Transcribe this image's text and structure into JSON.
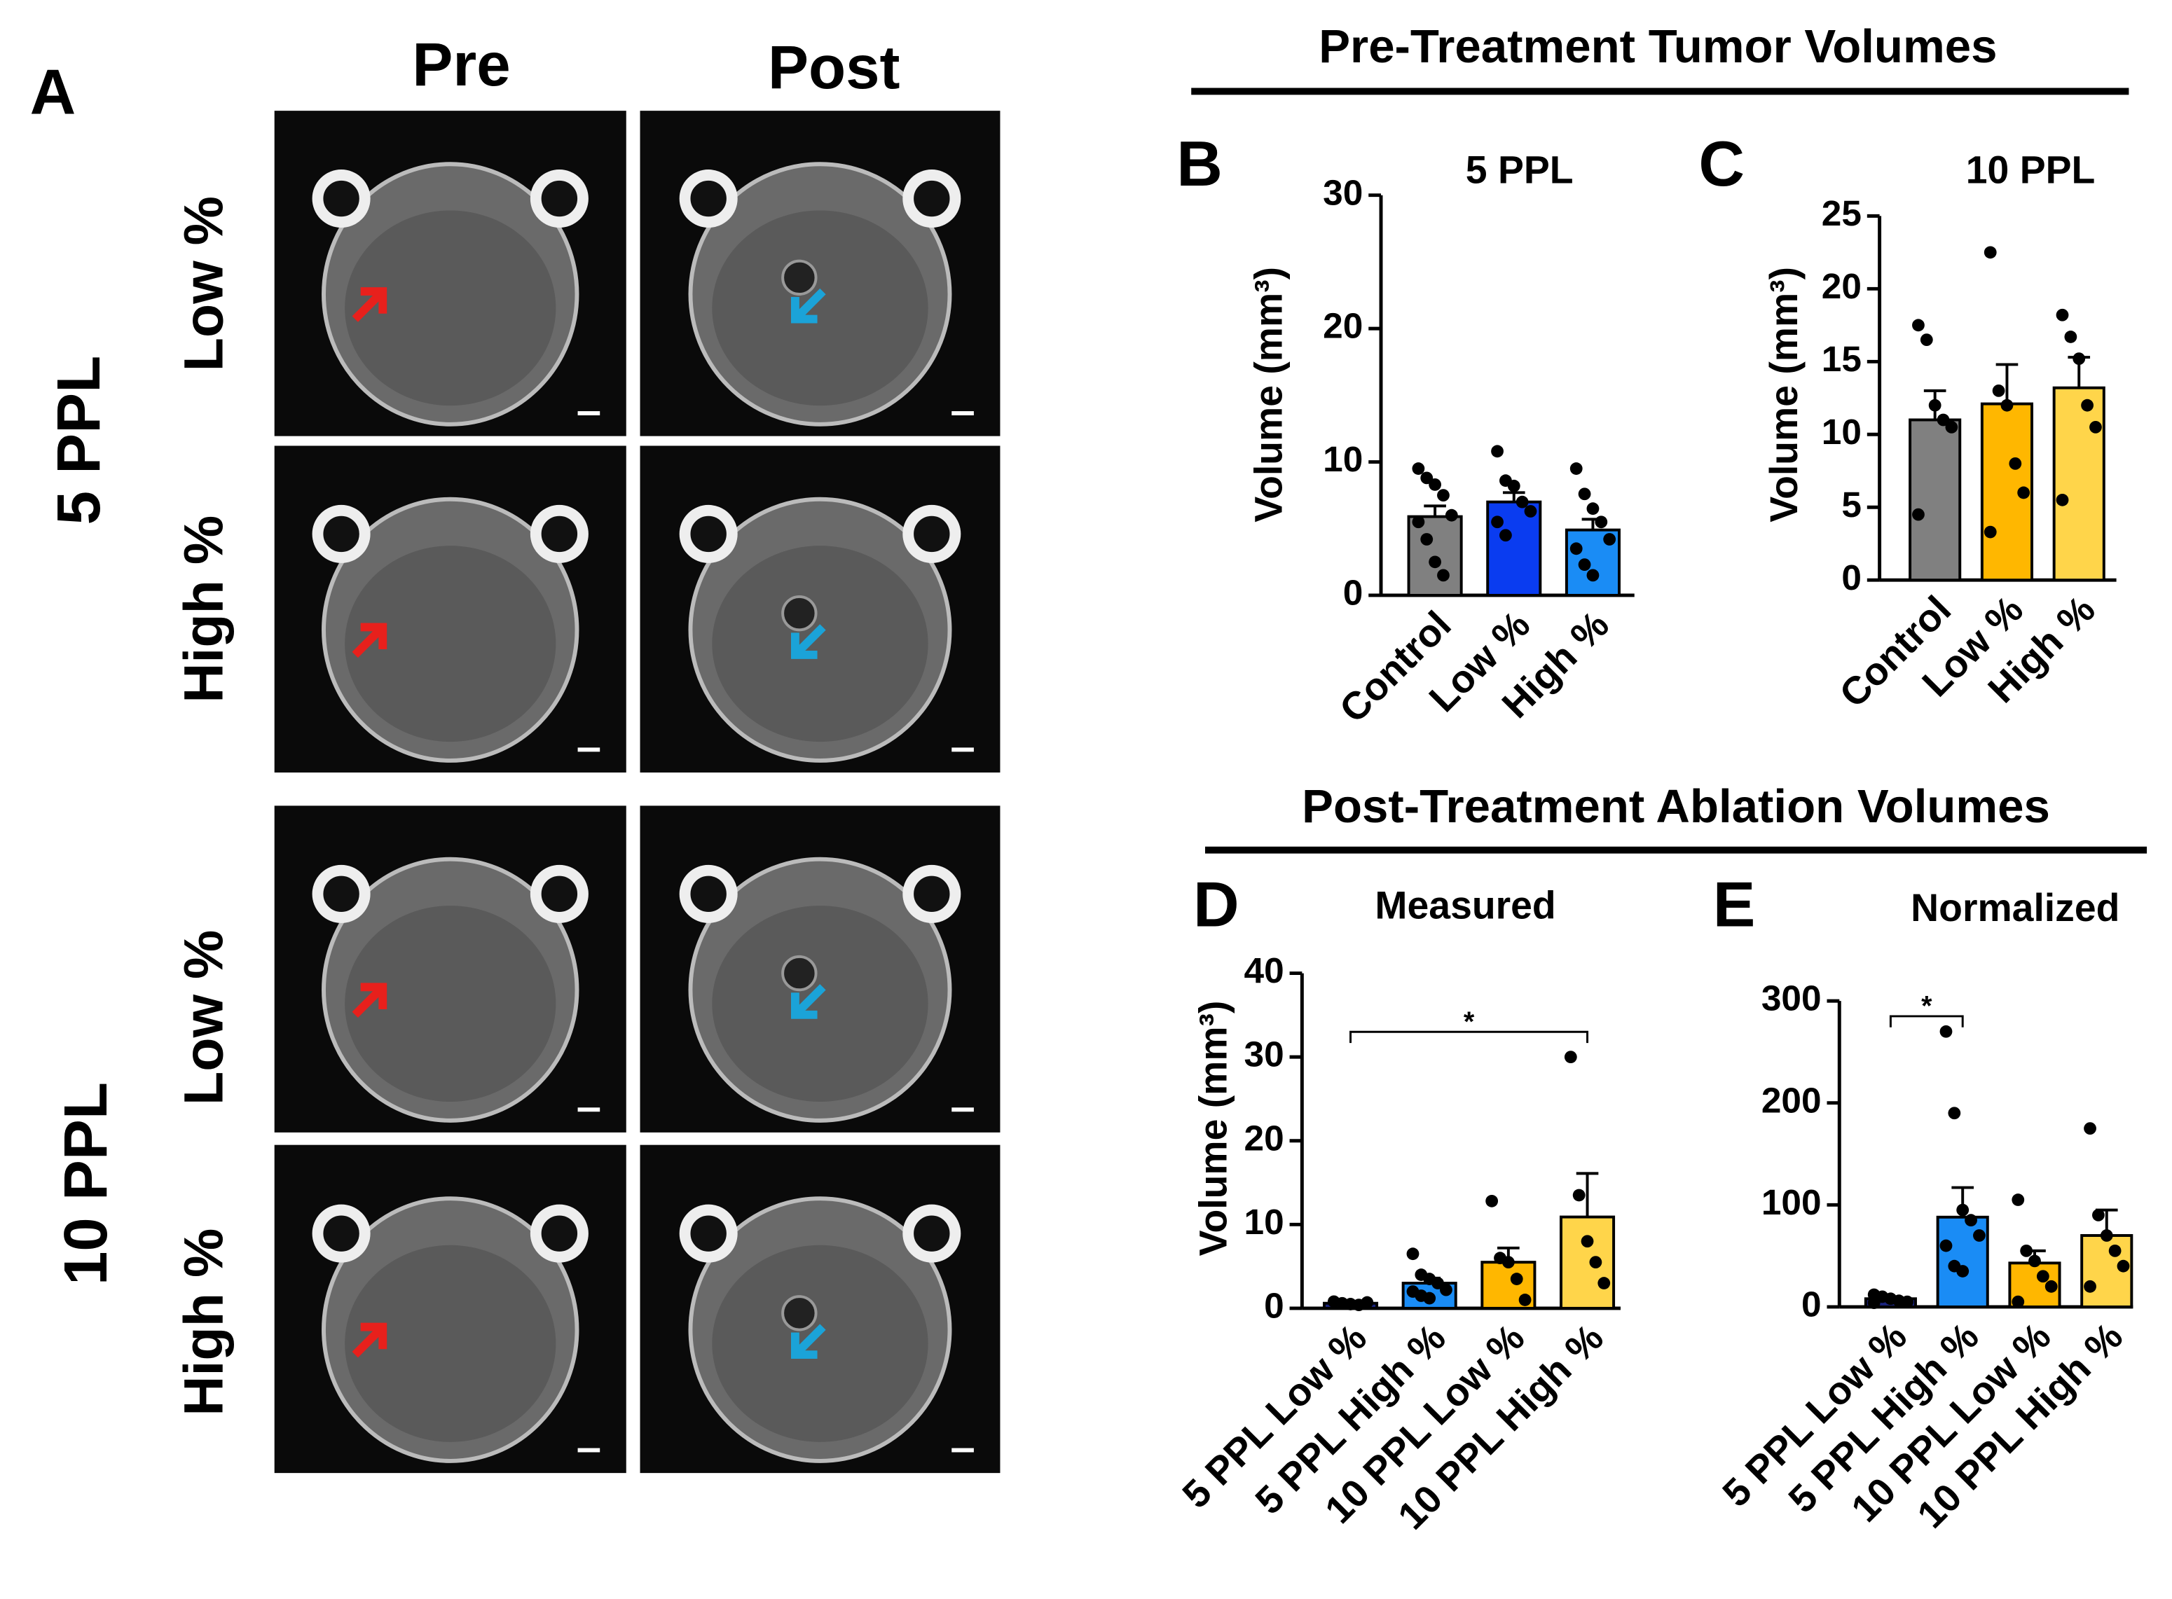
{
  "figure": {
    "panel_a": {
      "label": "A",
      "columns": [
        "Pre",
        "Post"
      ],
      "groups": [
        "5 PPL",
        "10 PPL"
      ],
      "rows": [
        "Low %",
        "High %",
        "Low %",
        "High %"
      ]
    },
    "headers": [
      "Pre-Treatment Tumor Volumes",
      "Post-Treatment Ablation Volumes"
    ]
  },
  "chart_data": [
    {
      "type": "bar",
      "panel": "B",
      "title": "5 PPL",
      "ylabel": "Volume (mm³)",
      "categories": [
        "Control",
        "Low %",
        "High %"
      ],
      "values": [
        5.9,
        7.0,
        4.9
      ],
      "errors": [
        0.8,
        0.7,
        0.8
      ],
      "colors": [
        "#808080",
        "#0a3cf0",
        "#1a8cf5"
      ],
      "points": [
        [
          9.5,
          8.8,
          8.3,
          7.5,
          6.0,
          5.5,
          4.2,
          2.5,
          1.5
        ],
        [
          10.8,
          8.6,
          8.2,
          7.0,
          6.3,
          5.5,
          4.5
        ],
        [
          9.5,
          7.6,
          6.5,
          5.5,
          4.2,
          3.5,
          2.3,
          1.5
        ]
      ],
      "ylim": [
        0,
        30
      ],
      "yticks": [
        0,
        10,
        20,
        30
      ]
    },
    {
      "type": "bar",
      "panel": "C",
      "title": "10 PPL",
      "ylabel": "Volume (mm³)",
      "categories": [
        "Control",
        "Low %",
        "High %"
      ],
      "values": [
        11.0,
        12.1,
        13.2
      ],
      "errors": [
        2.0,
        2.7,
        2.1
      ],
      "colors": [
        "#808080",
        "#ffb700",
        "#ffd54a"
      ],
      "points": [
        [
          17.5,
          16.5,
          12,
          11,
          10.5,
          4.5
        ],
        [
          22.5,
          13,
          12,
          8,
          6,
          3.3
        ],
        [
          18.2,
          16.7,
          15.2,
          12,
          10.5,
          5.5
        ]
      ],
      "ylim": [
        0,
        25
      ],
      "yticks": [
        0,
        5,
        10,
        15,
        20,
        25
      ]
    },
    {
      "type": "bar",
      "panel": "D",
      "title": "Measured",
      "ylabel": "Volume (mm³)",
      "categories": [
        "5 PPL Low %",
        "5 PPL High %",
        "10 PPL Low %",
        "10 PPL High %"
      ],
      "values": [
        0.6,
        3.0,
        5.5,
        10.9
      ],
      "errors": [
        0.1,
        0.6,
        1.7,
        5.2
      ],
      "colors": [
        "#1a237e",
        "#1a8cf5",
        "#ffb700",
        "#ffd54a"
      ],
      "points": [
        [
          0.8,
          0.6,
          0.5,
          0.4,
          0.7
        ],
        [
          6.5,
          4,
          3.5,
          3,
          2.2,
          2,
          1.5,
          1.2
        ],
        [
          12.8,
          6,
          5.5,
          3.5,
          1
        ],
        [
          30,
          13.5,
          8,
          5.5,
          3
        ]
      ],
      "annotations": [
        {
          "text": "*",
          "categories": [
            0,
            3
          ],
          "y": 33
        }
      ],
      "ylim": [
        0,
        40
      ],
      "yticks": [
        0,
        10,
        20,
        30,
        40
      ]
    },
    {
      "type": "bar",
      "panel": "E",
      "title": "Normalized",
      "categories": [
        "5 PPL Low %",
        "5 PPL High %",
        "10 PPL Low %",
        "10 PPL High %"
      ],
      "values": [
        8,
        88,
        43,
        70
      ],
      "errors": [
        2,
        29,
        12,
        25
      ],
      "colors": [
        "#1a237e",
        "#1a8cf5",
        "#ffb700",
        "#ffd54a"
      ],
      "points": [
        [
          12,
          10,
          8,
          6,
          5,
          4
        ],
        [
          270,
          190,
          95,
          85,
          70,
          60,
          40,
          35
        ],
        [
          105,
          55,
          45,
          30,
          20,
          5
        ],
        [
          175,
          90,
          70,
          55,
          40,
          20
        ]
      ],
      "annotations": [
        {
          "text": "*",
          "categories": [
            0,
            1
          ],
          "y": 285
        }
      ],
      "ylim": [
        0,
        300
      ],
      "yticks": [
        0,
        100,
        200,
        300
      ]
    }
  ]
}
